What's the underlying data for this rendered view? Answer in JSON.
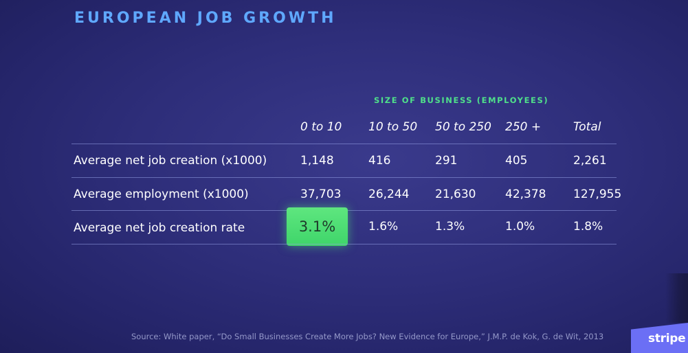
{
  "slide": {
    "title": "EUROPEAN JOB GROWTH",
    "group_header": "SIZE OF BUSINESS (EMPLOYEES)",
    "columns": [
      "0 to 10",
      "10 to 50",
      "50 to 250",
      "250 +",
      "Total"
    ],
    "rows": [
      {
        "label": "Average net job creation (x1000)",
        "values": [
          "1,148",
          "416",
          "291",
          "405",
          "2,261"
        ]
      },
      {
        "label": "Average employment (x1000)",
        "values": [
          "37,703",
          "26,244",
          "21,630",
          "42,378",
          "127,955"
        ]
      },
      {
        "label": "Average net job creation rate",
        "values": [
          "3.1%",
          "1.6%",
          "1.3%",
          "1.0%",
          "1.8%"
        ]
      }
    ],
    "highlighted_cell": "3.1%",
    "source": "Source: White paper, “Do Small Businesses Create More Jobs? New Evidence for Europe,” J.M.P. de Kok, G. de Wit, 2013",
    "brand": "stripe"
  },
  "colors": {
    "background": "#2e2e7a",
    "title": "#5fa8ff",
    "group_header": "#4fe08a",
    "highlight": "#4fdd73",
    "brand": "#6b6ff5"
  }
}
